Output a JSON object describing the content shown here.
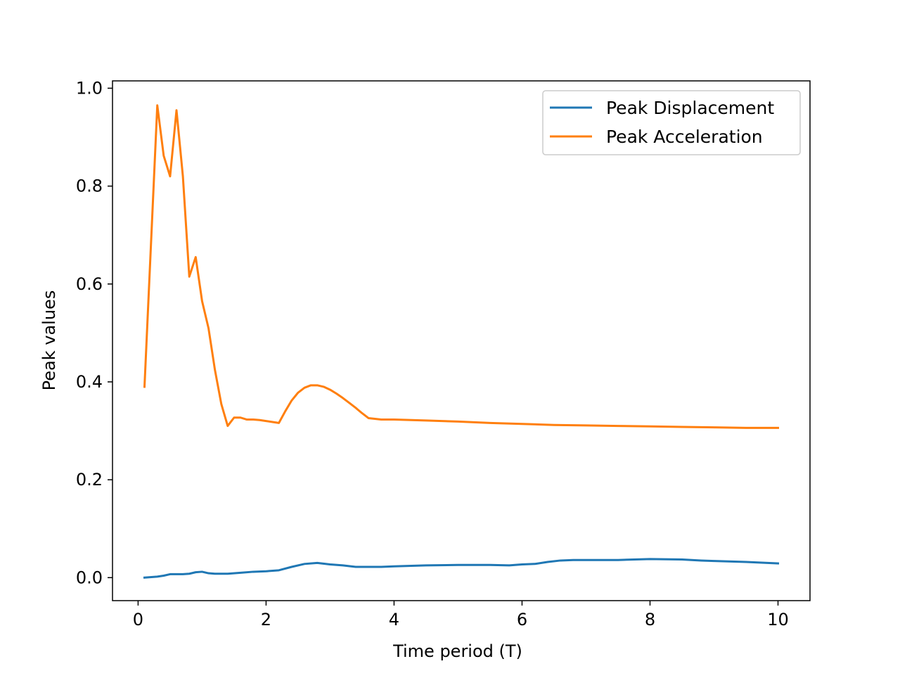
{
  "chart_data": {
    "type": "line",
    "title": "",
    "xlabel": "Time period (T)",
    "ylabel": "Peak values",
    "xlim": [
      -0.4,
      10.5
    ],
    "ylim": [
      -0.047,
      1.015
    ],
    "xticks": [
      0,
      2,
      4,
      6,
      8,
      10
    ],
    "xtick_labels": [
      "0",
      "2",
      "4",
      "6",
      "8",
      "10"
    ],
    "yticks": [
      0.0,
      0.2,
      0.4,
      0.6,
      0.8,
      1.0
    ],
    "ytick_labels": [
      "0.0",
      "0.2",
      "0.4",
      "0.6",
      "0.8",
      "1.0"
    ],
    "grid": false,
    "legend_position": "upper right",
    "series": [
      {
        "name": "Peak Displacement",
        "color": "#1f77b4",
        "x": [
          0.1,
          0.3,
          0.4,
          0.5,
          0.6,
          0.7,
          0.8,
          0.9,
          1.0,
          1.1,
          1.2,
          1.4,
          1.6,
          1.8,
          2.0,
          2.2,
          2.4,
          2.6,
          2.8,
          3.0,
          3.2,
          3.4,
          3.6,
          3.8,
          4.0,
          4.5,
          5.0,
          5.5,
          5.8,
          6.0,
          6.2,
          6.4,
          6.6,
          6.8,
          7.0,
          7.5,
          8.0,
          8.5,
          8.8,
          9.0,
          9.5,
          10.0
        ],
        "y": [
          0.0,
          0.002,
          0.004,
          0.007,
          0.007,
          0.007,
          0.008,
          0.011,
          0.012,
          0.009,
          0.008,
          0.008,
          0.01,
          0.012,
          0.013,
          0.015,
          0.022,
          0.028,
          0.03,
          0.027,
          0.025,
          0.022,
          0.022,
          0.022,
          0.023,
          0.025,
          0.026,
          0.026,
          0.025,
          0.027,
          0.028,
          0.032,
          0.035,
          0.036,
          0.036,
          0.036,
          0.038,
          0.037,
          0.035,
          0.034,
          0.032,
          0.029
        ]
      },
      {
        "name": "Peak Acceleration",
        "color": "#ff7f0e",
        "x": [
          0.1,
          0.3,
          0.4,
          0.5,
          0.6,
          0.7,
          0.8,
          0.9,
          1.0,
          1.1,
          1.2,
          1.3,
          1.4,
          1.5,
          1.6,
          1.7,
          1.8,
          1.9,
          2.0,
          2.1,
          2.2,
          2.3,
          2.4,
          2.5,
          2.6,
          2.7,
          2.8,
          2.9,
          3.0,
          3.1,
          3.2,
          3.3,
          3.4,
          3.5,
          3.6,
          3.8,
          4.0,
          4.5,
          5.0,
          5.5,
          6.0,
          6.5,
          7.0,
          7.5,
          8.0,
          8.5,
          9.0,
          9.5,
          10.0
        ],
        "y": [
          0.39,
          0.965,
          0.862,
          0.82,
          0.955,
          0.82,
          0.615,
          0.655,
          0.565,
          0.51,
          0.425,
          0.355,
          0.31,
          0.327,
          0.327,
          0.323,
          0.323,
          0.322,
          0.32,
          0.318,
          0.316,
          0.34,
          0.362,
          0.378,
          0.388,
          0.393,
          0.393,
          0.39,
          0.384,
          0.376,
          0.367,
          0.357,
          0.347,
          0.336,
          0.326,
          0.323,
          0.323,
          0.321,
          0.319,
          0.316,
          0.314,
          0.312,
          0.311,
          0.31,
          0.309,
          0.308,
          0.307,
          0.306,
          0.306
        ]
      }
    ]
  }
}
